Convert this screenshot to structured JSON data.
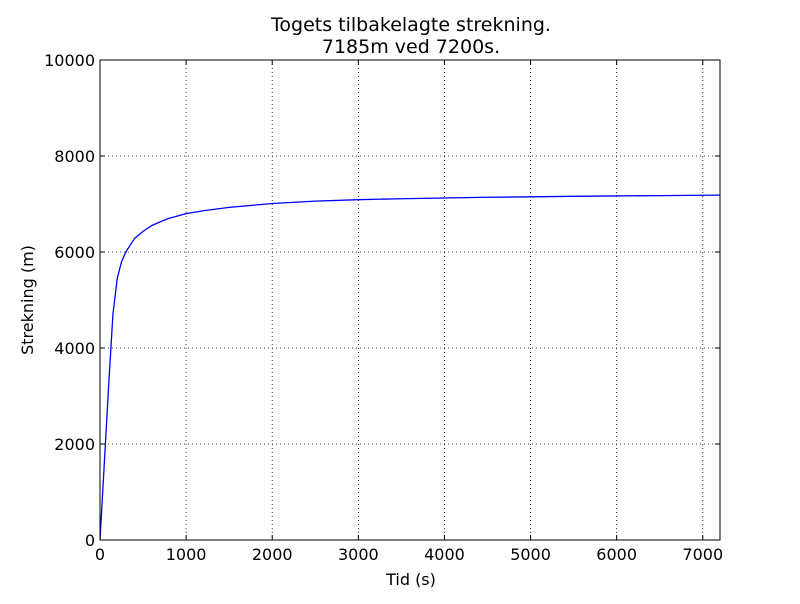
{
  "chart_data": {
    "type": "line",
    "title": "Togets tilbakelagte strekning.",
    "subtitle": "7185m ved 7200s.",
    "xlabel": "Tid (s)",
    "ylabel": "Strekning (m)",
    "xlim": [
      0,
      7200
    ],
    "ylim": [
      0,
      10000
    ],
    "xticks": [
      0,
      1000,
      2000,
      3000,
      4000,
      5000,
      6000,
      7000
    ],
    "yticks": [
      0,
      2000,
      4000,
      6000,
      8000,
      10000
    ],
    "xtick_labels": [
      "0",
      "1000",
      "2000",
      "3000",
      "4000",
      "5000",
      "6000",
      "7000"
    ],
    "ytick_labels": [
      "0",
      "2000",
      "4000",
      "6000",
      "8000",
      "10000"
    ],
    "grid": true,
    "series": [
      {
        "color": "#0000ff",
        "x": [
          0,
          50,
          100,
          150,
          200,
          250,
          300,
          400,
          500,
          600,
          700,
          800,
          1000,
          1200,
          1500,
          2000,
          2500,
          3000,
          3500,
          4000,
          4500,
          5000,
          5500,
          6000,
          6500,
          7000,
          7200
        ],
        "y": [
          0,
          1600,
          3200,
          4700,
          5450,
          5800,
          6000,
          6280,
          6430,
          6550,
          6630,
          6700,
          6800,
          6860,
          6930,
          7010,
          7060,
          7090,
          7110,
          7125,
          7140,
          7150,
          7160,
          7168,
          7175,
          7182,
          7185
        ]
      }
    ]
  }
}
